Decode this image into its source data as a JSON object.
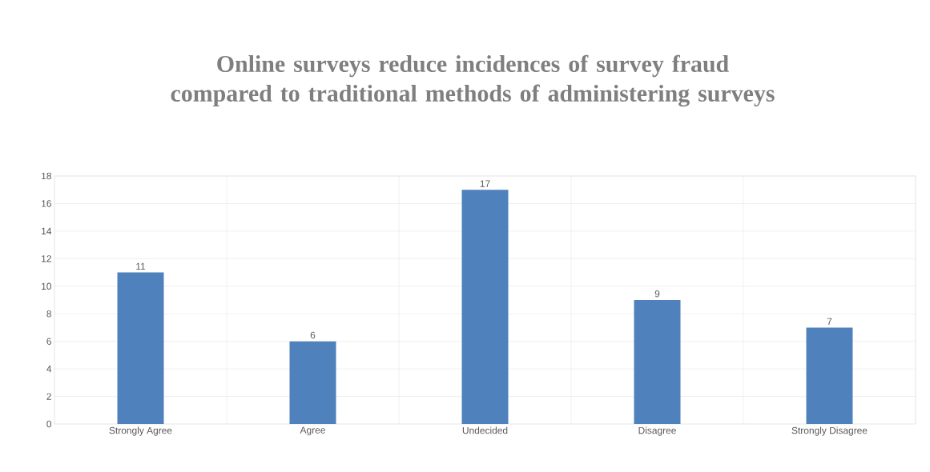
{
  "chart_data": {
    "type": "bar",
    "title": "Online surveys reduce incidences of survey fraud compared to traditional methods of administering surveys",
    "categories": [
      "Strongly Agree",
      "Agree",
      "Undecided",
      "Disagree",
      "Strongly Disagree"
    ],
    "values": [
      11,
      6,
      17,
      9,
      7
    ],
    "color": "#4f81bd",
    "ylim": [
      0,
      18
    ],
    "yticks": [
      0,
      2,
      4,
      6,
      8,
      10,
      12,
      14,
      16,
      18
    ],
    "grid": true,
    "data_labels": true
  }
}
